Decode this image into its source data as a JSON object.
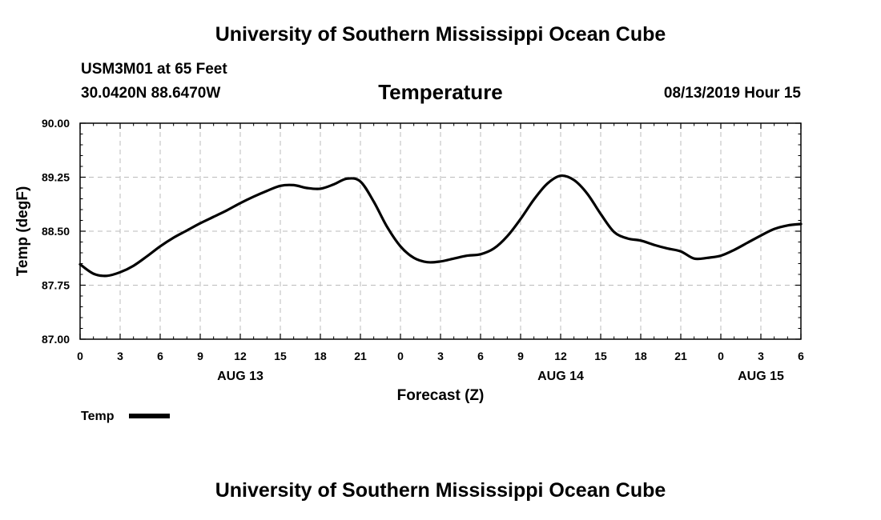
{
  "header": {
    "title": "University of Southern Mississippi Ocean Cube",
    "station": "USM3M01 at 65 Feet",
    "coordinates": "30.0420N 88.6470W",
    "timestamp": "08/13/2019 Hour 15"
  },
  "footer": {
    "title": "University of Southern Mississippi Ocean Cube"
  },
  "colors": {
    "line": "#000000",
    "grid": "#bbbbbb",
    "background": "#ffffff"
  },
  "chart_data": {
    "type": "line",
    "title": "Temperature",
    "xlabel": "Forecast (Z)",
    "ylabel": "Temp (degF)",
    "x_unit": "hours from 08/13/2019 00Z",
    "xlim": [
      0,
      54
    ],
    "ylim": [
      87.0,
      90.0
    ],
    "grid": true,
    "x_ticks": [
      0,
      3,
      6,
      9,
      12,
      15,
      18,
      21,
      24,
      27,
      30,
      33,
      36,
      39,
      42,
      45,
      48,
      51,
      54
    ],
    "x_tick_labels": [
      "0",
      "3",
      "6",
      "9",
      "12",
      "15",
      "18",
      "21",
      "0",
      "3",
      "6",
      "9",
      "12",
      "15",
      "18",
      "21",
      "0",
      "3",
      "6"
    ],
    "date_labels": [
      {
        "x": 12,
        "label": "AUG 13"
      },
      {
        "x": 36,
        "label": "AUG 14"
      },
      {
        "x": 51,
        "label": "AUG 15"
      }
    ],
    "y_ticks": [
      87.0,
      87.75,
      88.5,
      89.25,
      90.0
    ],
    "y_tick_labels": [
      "87.00",
      "87.75",
      "88.50",
      "89.25",
      "90.00"
    ],
    "legend": {
      "label": "Temp",
      "placement": "bottom-left"
    },
    "series": [
      {
        "name": "Temp",
        "x": [
          0,
          1,
          2,
          3,
          4,
          5,
          6,
          7,
          8,
          9,
          10,
          11,
          12,
          13,
          14,
          15,
          16,
          17,
          18,
          19,
          20,
          21,
          22,
          23,
          24,
          25,
          26,
          27,
          28,
          29,
          30,
          31,
          32,
          33,
          34,
          35,
          36,
          37,
          38,
          39,
          40,
          41,
          42,
          43,
          44,
          45,
          46,
          47,
          48,
          49,
          50,
          51,
          52,
          53,
          54
        ],
        "values": [
          88.04,
          87.91,
          87.88,
          87.93,
          88.02,
          88.15,
          88.29,
          88.41,
          88.51,
          88.61,
          88.7,
          88.79,
          88.89,
          88.98,
          89.06,
          89.13,
          89.14,
          89.1,
          89.09,
          89.15,
          89.23,
          89.19,
          88.91,
          88.56,
          88.29,
          88.13,
          88.07,
          88.08,
          88.12,
          88.16,
          88.18,
          88.26,
          88.43,
          88.67,
          88.94,
          89.16,
          89.27,
          89.21,
          89.02,
          88.74,
          88.49,
          88.4,
          88.37,
          88.31,
          88.26,
          88.22,
          88.12,
          88.13,
          88.16,
          88.24,
          88.34,
          88.44,
          88.53,
          88.58,
          88.6
        ]
      }
    ]
  }
}
